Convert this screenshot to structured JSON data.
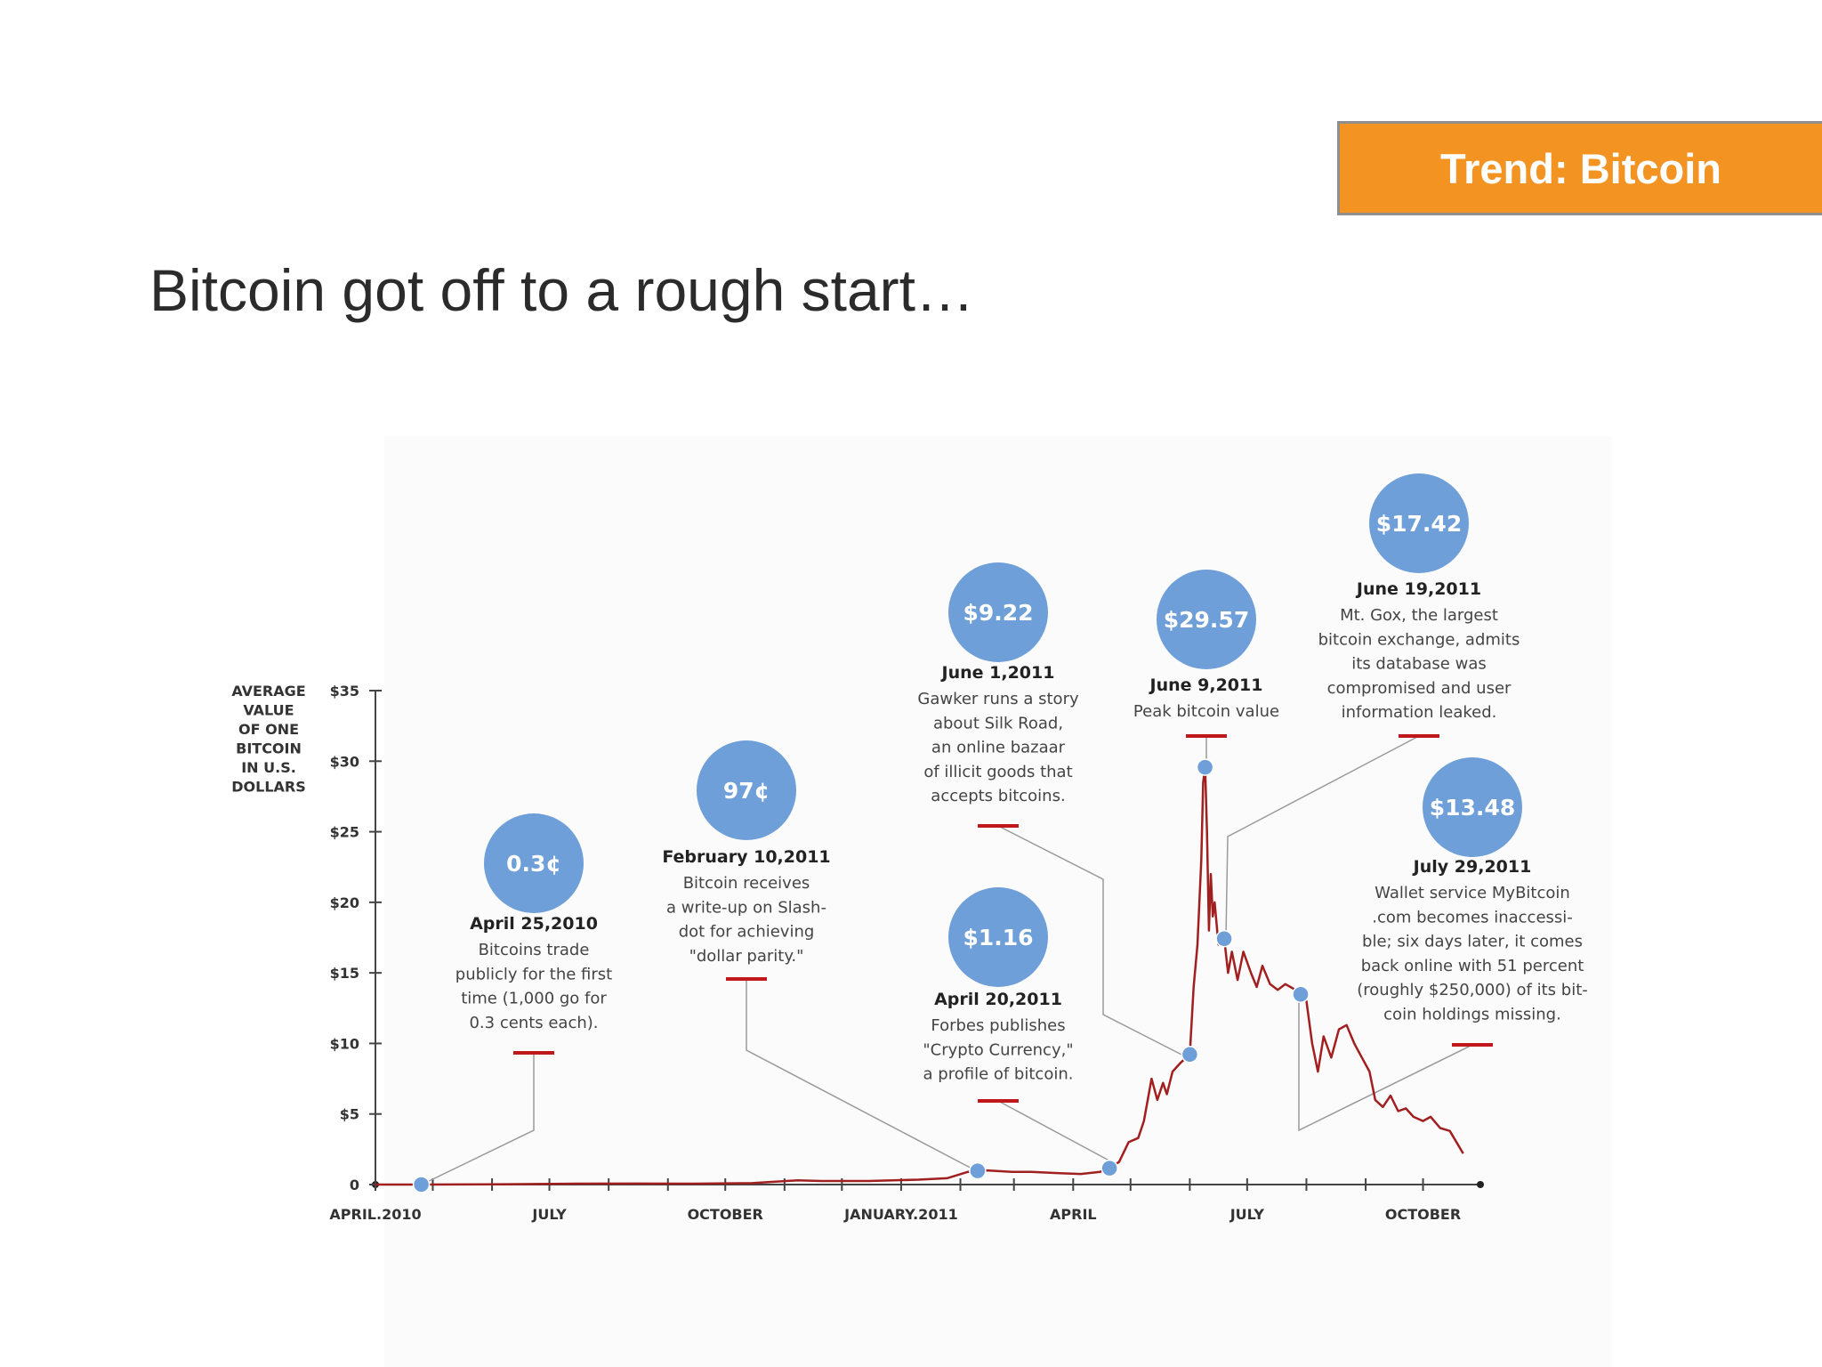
{
  "slide": {
    "tag": "Trend: Bitcoin",
    "title": "Bitcoin got off to a rough start…"
  },
  "colors": {
    "tag_bg": "#f29322",
    "bubble": "#6e9fd8",
    "line": "#a11f1f",
    "marker": "#c0171b",
    "leader": "#9a9a9a"
  },
  "chart_data": {
    "type": "line",
    "title": "",
    "ylabel_lines": [
      "AVERAGE",
      "VALUE",
      "OF ONE",
      "BITCOIN",
      "IN U.S.",
      "DOLLARS"
    ],
    "ylim": [
      0,
      35
    ],
    "y_ticks": [
      {
        "value": 35,
        "label": "$35"
      },
      {
        "value": 30,
        "label": "$30"
      },
      {
        "value": 25,
        "label": "$25"
      },
      {
        "value": 20,
        "label": "$20"
      },
      {
        "value": 15,
        "label": "$15"
      },
      {
        "value": 10,
        "label": "$10"
      },
      {
        "value": 5,
        "label": "$5"
      },
      {
        "value": 0,
        "label": "0"
      }
    ],
    "x_range": [
      "2010-04-01",
      "2011-10-31"
    ],
    "x_tick_labels": [
      {
        "date": "2010-04-01",
        "label": "APRIL.2010"
      },
      {
        "date": "2010-07-01",
        "label": "JULY"
      },
      {
        "date": "2010-10-01",
        "label": "OCTOBER"
      },
      {
        "date": "2011-01-01",
        "label": "JANUARY.2011"
      },
      {
        "date": "2011-04-01",
        "label": "APRIL"
      },
      {
        "date": "2011-07-01",
        "label": "JULY"
      },
      {
        "date": "2011-10-01",
        "label": "OCTOBER"
      }
    ],
    "x_minor_ticks": [
      "2010-05-01",
      "2010-06-01",
      "2010-08-01",
      "2010-09-01",
      "2010-11-01",
      "2010-12-01",
      "2011-02-01",
      "2011-03-01",
      "2011-05-01",
      "2011-06-01",
      "2011-08-01",
      "2011-09-01"
    ],
    "series": [
      {
        "points": [
          [
            "2010-04-01",
            0.003
          ],
          [
            "2010-04-25",
            0.003
          ],
          [
            "2010-06-01",
            0.01
          ],
          [
            "2010-07-15",
            0.06
          ],
          [
            "2010-08-15",
            0.07
          ],
          [
            "2010-09-15",
            0.06
          ],
          [
            "2010-10-15",
            0.1
          ],
          [
            "2010-11-08",
            0.3
          ],
          [
            "2010-11-20",
            0.25
          ],
          [
            "2010-12-15",
            0.25
          ],
          [
            "2011-01-10",
            0.35
          ],
          [
            "2011-01-25",
            0.45
          ],
          [
            "2011-02-05",
            0.9
          ],
          [
            "2011-02-10",
            0.97
          ],
          [
            "2011-02-15",
            1.0
          ],
          [
            "2011-02-28",
            0.9
          ],
          [
            "2011-03-10",
            0.9
          ],
          [
            "2011-03-25",
            0.8
          ],
          [
            "2011-04-05",
            0.75
          ],
          [
            "2011-04-15",
            0.9
          ],
          [
            "2011-04-20",
            1.16
          ],
          [
            "2011-04-25",
            1.6
          ],
          [
            "2011-04-30",
            3.0
          ],
          [
            "2011-05-05",
            3.3
          ],
          [
            "2011-05-08",
            4.5
          ],
          [
            "2011-05-12",
            7.5
          ],
          [
            "2011-05-15",
            6.0
          ],
          [
            "2011-05-18",
            7.2
          ],
          [
            "2011-05-20",
            6.4
          ],
          [
            "2011-05-23",
            8.0
          ],
          [
            "2011-05-27",
            8.6
          ],
          [
            "2011-06-01",
            9.22
          ],
          [
            "2011-06-03",
            14.0
          ],
          [
            "2011-06-05",
            17.0
          ],
          [
            "2011-06-07",
            23.0
          ],
          [
            "2011-06-08",
            28.5
          ],
          [
            "2011-06-09",
            29.57
          ],
          [
            "2011-06-10",
            25.0
          ],
          [
            "2011-06-11",
            18.0
          ],
          [
            "2011-06-12",
            22.0
          ],
          [
            "2011-06-13",
            19.0
          ],
          [
            "2011-06-14",
            20.0
          ],
          [
            "2011-06-16",
            17.0
          ],
          [
            "2011-06-19",
            17.42
          ],
          [
            "2011-06-21",
            15.0
          ],
          [
            "2011-06-23",
            16.5
          ],
          [
            "2011-06-26",
            14.5
          ],
          [
            "2011-06-29",
            16.5
          ],
          [
            "2011-07-03",
            15.0
          ],
          [
            "2011-07-06",
            14.0
          ],
          [
            "2011-07-09",
            15.5
          ],
          [
            "2011-07-13",
            14.2
          ],
          [
            "2011-07-17",
            13.8
          ],
          [
            "2011-07-21",
            14.2
          ],
          [
            "2011-07-25",
            13.9
          ],
          [
            "2011-07-29",
            13.48
          ],
          [
            "2011-08-01",
            13.0
          ],
          [
            "2011-08-04",
            10.0
          ],
          [
            "2011-08-07",
            8.0
          ],
          [
            "2011-08-10",
            10.5
          ],
          [
            "2011-08-14",
            9.0
          ],
          [
            "2011-08-18",
            11.0
          ],
          [
            "2011-08-22",
            11.3
          ],
          [
            "2011-08-26",
            10.0
          ],
          [
            "2011-08-30",
            9.0
          ],
          [
            "2011-09-03",
            8.0
          ],
          [
            "2011-09-06",
            6.0
          ],
          [
            "2011-09-10",
            5.5
          ],
          [
            "2011-09-14",
            6.3
          ],
          [
            "2011-09-18",
            5.2
          ],
          [
            "2011-09-22",
            5.4
          ],
          [
            "2011-09-26",
            4.8
          ],
          [
            "2011-10-01",
            4.5
          ],
          [
            "2011-10-05",
            4.8
          ],
          [
            "2011-10-10",
            4.0
          ],
          [
            "2011-10-15",
            3.8
          ],
          [
            "2011-10-22",
            2.2
          ]
        ]
      }
    ],
    "annotations": [
      {
        "date": "2010-04-25",
        "value": 0.003,
        "bubble_text": "0.3¢",
        "heading": "April 25,2010",
        "lines": [
          "Bitcoins trade",
          "publicly for the first",
          "time (1,000 go for",
          "0.3 cents each)."
        ]
      },
      {
        "date": "2011-02-10",
        "value": 0.97,
        "bubble_text": "97¢",
        "heading": "February 10,2011",
        "lines": [
          "Bitcoin receives",
          "a write-up on Slash-",
          "dot for achieving",
          "\"dollar parity.\""
        ]
      },
      {
        "date": "2011-04-20",
        "value": 1.16,
        "bubble_text": "$1.16",
        "heading": "April 20,2011",
        "lines": [
          "Forbes publishes",
          "\"Crypto Currency,\"",
          "a profile of bitcoin."
        ]
      },
      {
        "date": "2011-06-01",
        "value": 9.22,
        "bubble_text": "$9.22",
        "heading": "June 1,2011",
        "lines": [
          "Gawker runs a story",
          "about Silk Road,",
          "an online bazaar",
          "of illicit goods that",
          "accepts bitcoins."
        ]
      },
      {
        "date": "2011-06-09",
        "value": 29.57,
        "bubble_text": "$29.57",
        "heading": "June 9,2011",
        "lines": [
          "Peak bitcoin value"
        ]
      },
      {
        "date": "2011-06-19",
        "value": 17.42,
        "bubble_text": "$17.42",
        "heading": "June 19,2011",
        "lines": [
          "Mt. Gox, the largest",
          "bitcoin exchange, admits",
          "its database was",
          "compromised and user",
          "information leaked."
        ]
      },
      {
        "date": "2011-07-29",
        "value": 13.48,
        "bubble_text": "$13.48",
        "heading": "July 29,2011",
        "lines": [
          "Wallet service MyBitcoin",
          ".com becomes inaccessi-",
          "ble; six days later, it comes",
          "back online with 51 percent",
          "(roughly $250,000) of its bit-",
          "coin holdings missing."
        ]
      }
    ]
  }
}
